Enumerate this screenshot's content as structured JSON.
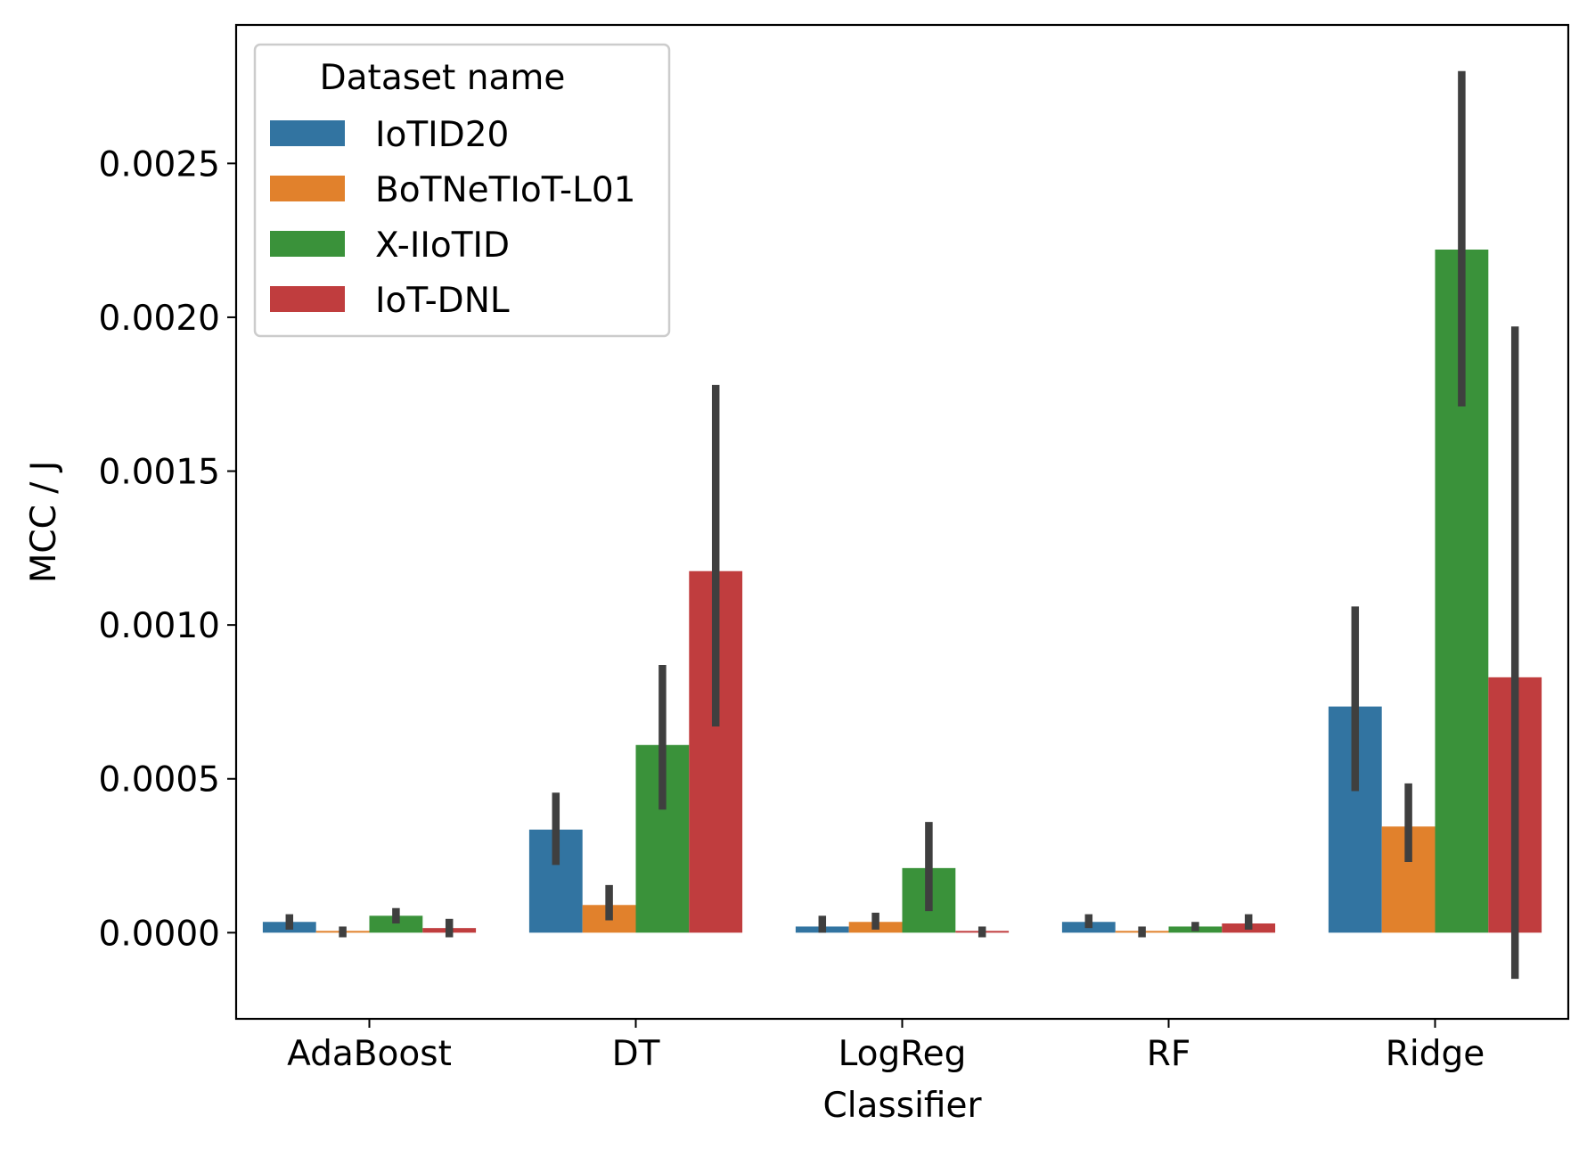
{
  "chart_data": {
    "type": "bar",
    "xlabel": "Classifier",
    "ylabel": "MCC / J",
    "categories": [
      "AdaBoost",
      "DT",
      "LogReg",
      "RF",
      "Ridge"
    ],
    "ylim": [
      -0.00028,
      0.00295
    ],
    "yticks": [
      0.0,
      0.0005,
      0.001,
      0.0015,
      0.002,
      0.0025
    ],
    "ytick_labels": [
      "0.0000",
      "0.0005",
      "0.0010",
      "0.0015",
      "0.0020",
      "0.0025"
    ],
    "grid": false,
    "legend": {
      "title": "Dataset name",
      "placement": "top-left"
    },
    "series": [
      {
        "name": "IoTID20",
        "color": "#3274a1",
        "values": [
          3.5e-05,
          0.000335,
          2e-05,
          3.5e-05,
          0.000735
        ],
        "err_low": [
          1e-05,
          0.00022,
          0.0,
          1.5e-05,
          0.00046
        ],
        "err_high": [
          6e-05,
          0.000455,
          5.5e-05,
          6e-05,
          0.00106
        ]
      },
      {
        "name": "BoTNeTIoT-L01",
        "color": "#e1812c",
        "values": [
          5e-06,
          9e-05,
          3.5e-05,
          3e-06,
          0.000345
        ],
        "err_low": [
          -1.5e-05,
          4e-05,
          1e-05,
          -1.5e-05,
          0.00023
        ],
        "err_high": [
          2e-05,
          0.000155,
          6.5e-05,
          2e-05,
          0.000485
        ]
      },
      {
        "name": "X-IIoTID",
        "color": "#3a923a",
        "values": [
          5.5e-05,
          0.00061,
          0.00021,
          2e-05,
          0.00222
        ],
        "err_low": [
          3e-05,
          0.0004,
          7e-05,
          5e-06,
          0.00171
        ],
        "err_high": [
          8e-05,
          0.00087,
          0.00036,
          3.5e-05,
          0.0028
        ]
      },
      {
        "name": "IoT-DNL",
        "color": "#c03d3e",
        "values": [
          1.5e-05,
          0.001175,
          5e-06,
          3e-05,
          0.00083
        ],
        "err_low": [
          -1.5e-05,
          0.00067,
          -1.5e-05,
          1e-05,
          -0.00015
        ],
        "err_high": [
          4.5e-05,
          0.00178,
          2e-05,
          6e-05,
          0.00197
        ]
      }
    ]
  }
}
